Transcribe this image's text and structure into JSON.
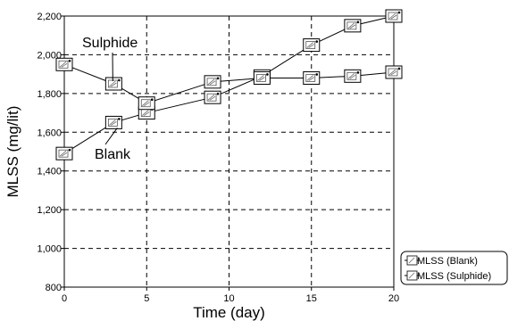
{
  "chart_data": {
    "type": "line",
    "title": "",
    "xlabel": "Time (day)",
    "ylabel": "MLSS (mg/lit)",
    "xlim": [
      0,
      20
    ],
    "ylim": [
      800,
      2200
    ],
    "x_ticks": [
      0,
      5,
      10,
      15,
      20
    ],
    "x_tick_labels": [
      "0",
      "5",
      "10",
      "15",
      "20"
    ],
    "y_ticks": [
      800,
      1000,
      1200,
      1400,
      1600,
      1800,
      2000,
      2200
    ],
    "y_tick_labels": [
      "800",
      "1,000",
      "1,200",
      "1,400",
      "1,600",
      "1,800",
      "2,000",
      "2,200"
    ],
    "grid": true,
    "legend_position": "bottom-right, outside plot",
    "series": [
      {
        "name": "MLSS (Blank)",
        "x": [
          0,
          3,
          5,
          9,
          12,
          15,
          17.5,
          20
        ],
        "y": [
          1490,
          1650,
          1700,
          1780,
          1890,
          2050,
          2150,
          2200
        ]
      },
      {
        "name": "MLSS (Sulphide)",
        "x": [
          0,
          3,
          5,
          9,
          12,
          15,
          17.5,
          20
        ],
        "y": [
          1950,
          1850,
          1750,
          1860,
          1880,
          1880,
          1890,
          1910
        ]
      }
    ],
    "annotations": [
      {
        "text": "Sulphide",
        "series": "MLSS (Sulphide)"
      },
      {
        "text": "Blank",
        "series": "MLSS (Blank)"
      }
    ]
  }
}
